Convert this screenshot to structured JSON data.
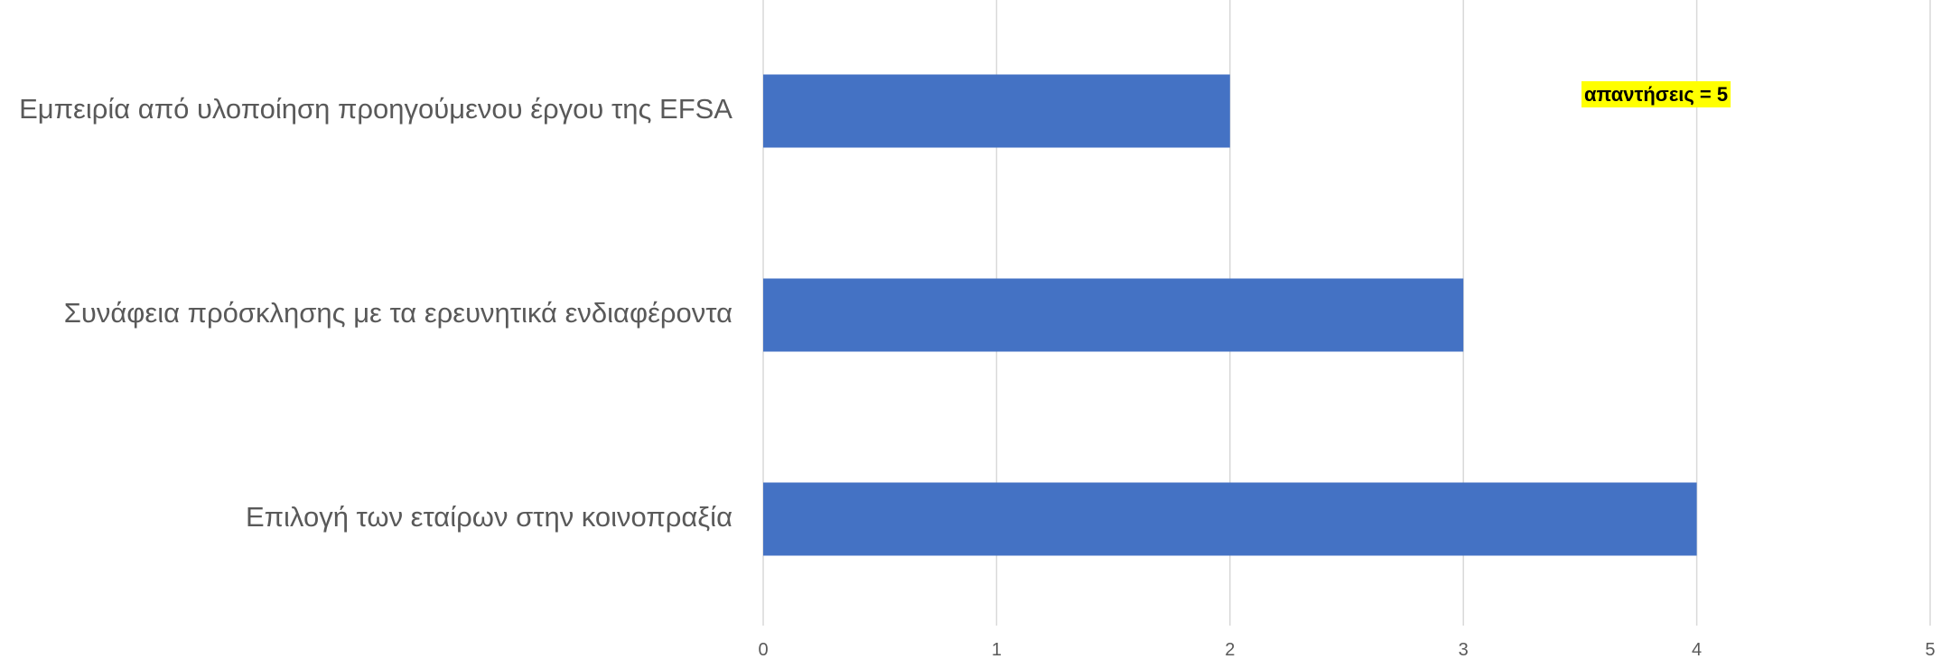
{
  "chart_data": {
    "type": "bar",
    "orientation": "horizontal",
    "categories": [
      "Εμπειρία από υλοποίηση προηγούμενου έργου της EFSA",
      "Συνάφεια πρόσκλησης με τα ερευνητικά ενδιαφέροντα",
      "Επιλογή των εταίρων στην κοινοπραξία"
    ],
    "values": [
      2,
      3,
      4
    ],
    "xlim": [
      0,
      5
    ],
    "xticks": [
      "0",
      "1",
      "2",
      "3",
      "4",
      "5"
    ],
    "grid": "vertical",
    "legend": "none",
    "bar_color": "#4472C4",
    "annotation": {
      "text": "απαντήσεις = 5",
      "highlight_color": "#FFFF00"
    },
    "title": "",
    "xlabel": "",
    "ylabel": ""
  }
}
